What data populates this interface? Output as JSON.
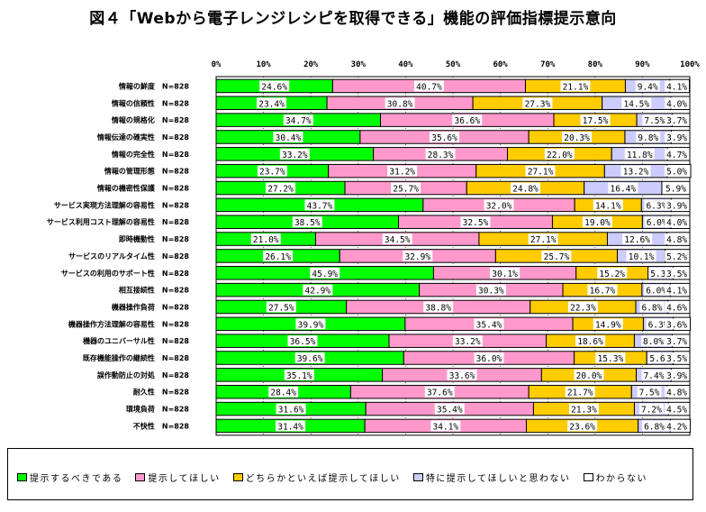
{
  "chart_data": {
    "type": "bar",
    "orientation": "horizontal",
    "stacked": true,
    "title": "図４「Webから電子レンジレシピを取得できる」機能の評価指標提示意向",
    "xlim": [
      0,
      100
    ],
    "x_ticks": [
      "0%",
      "10%",
      "20%",
      "30%",
      "40%",
      "50%",
      "60%",
      "70%",
      "80%",
      "90%",
      "100%"
    ],
    "grid": true,
    "legend_position": "bottom",
    "categories": [
      "情報の鮮度　N=828",
      "情報の信頼性　N=828",
      "情報の規格化　N=828",
      "情報伝達の確実性　N=828",
      "情報の完全性　N=828",
      "情報の管理形態　N=828",
      "情報の機密性保護　N=828",
      "サービス実現方法理解の容易性　N=828",
      "サービス利用コスト理解の容易性　N=828",
      "即時機動性　N=828",
      "サービスのリアルタイム性　N=828",
      "サービスの利用のサポート性　N=828",
      "相互接続性　N=828",
      "機器操作負荷　N=828",
      "機器操作方法理解の容易性　N=828",
      "機器のユニバーサル性　N=828",
      "既存機能操作の継続性　N=828",
      "誤作動防止の対処　N=828",
      "耐久性　N=828",
      "環境負荷　N=828",
      "不快性　N=828"
    ],
    "series": [
      {
        "name": "提示するべきである",
        "color": "#00ff00",
        "values": [
          24.6,
          23.4,
          34.7,
          30.4,
          33.2,
          23.7,
          27.2,
          43.7,
          38.5,
          21.0,
          26.1,
          45.9,
          42.9,
          27.5,
          39.9,
          36.5,
          39.6,
          35.1,
          28.4,
          31.6,
          31.4
        ]
      },
      {
        "name": "提示してほしい",
        "color": "#ff99cc",
        "values": [
          40.7,
          30.8,
          36.6,
          35.6,
          28.3,
          31.2,
          25.7,
          32.0,
          32.5,
          34.5,
          32.9,
          30.1,
          30.3,
          38.8,
          35.4,
          33.2,
          36.0,
          33.6,
          37.6,
          35.4,
          34.1
        ]
      },
      {
        "name": "どちらかといえば提示してほしい",
        "color": "#ffcc00",
        "values": [
          21.1,
          27.3,
          17.5,
          20.3,
          22.0,
          27.1,
          24.8,
          14.1,
          19.0,
          27.1,
          25.7,
          15.2,
          16.7,
          22.3,
          14.9,
          18.6,
          15.3,
          20.0,
          21.7,
          21.3,
          23.6
        ]
      },
      {
        "name": "特に提示してほしいと思わない",
        "color": "#ccccff",
        "values": [
          9.4,
          14.5,
          7.5,
          9.8,
          11.8,
          13.2,
          16.4,
          6.3,
          6.0,
          12.6,
          10.1,
          5.3,
          6.0,
          6.8,
          6.3,
          8.0,
          5.6,
          7.4,
          7.5,
          7.2,
          6.8
        ]
      },
      {
        "name": "わからない",
        "color": "#ffffff",
        "values": [
          4.1,
          4.0,
          3.7,
          3.9,
          4.7,
          5.0,
          5.9,
          3.9,
          4.0,
          4.8,
          5.2,
          3.5,
          4.1,
          4.6,
          3.6,
          3.7,
          3.5,
          3.9,
          4.8,
          4.5,
          4.2
        ]
      }
    ],
    "data_labels": [
      [
        "24.6%",
        "40.7%",
        "21.1%",
        "9.4%",
        "4.1%"
      ],
      [
        "23.4%",
        "30.8%",
        "27.3%",
        "14.5%",
        "4.0%"
      ],
      [
        "34.7%",
        "36.6%",
        "17.5%",
        "7.5%",
        "3.7%"
      ],
      [
        "30.4%",
        "35.6%",
        "20.3%",
        "9.8%",
        "3.9%"
      ],
      [
        "33.2%",
        "28.3%",
        "22.0%",
        "11.8%",
        "4.7%"
      ],
      [
        "23.7%",
        "31.2%",
        "27.1%",
        "13.2%",
        "5.0%"
      ],
      [
        "27.2%",
        "25.7%",
        "24.8%",
        "16.4%",
        "5.9%"
      ],
      [
        "43.7%",
        "32.0%",
        "14.1%",
        "6.3%",
        "3.9%"
      ],
      [
        "38.5%",
        "32.5%",
        "19.0%",
        "6.0%",
        "4.0%"
      ],
      [
        "21.0%",
        "34.5%",
        "27.1%",
        "12.6%",
        "4.8%"
      ],
      [
        "26.1%",
        "32.9%",
        "25.7%",
        "10.1%",
        "5.2%"
      ],
      [
        "45.9%",
        "30.1%",
        "15.2%",
        "5.3%",
        "3.5%"
      ],
      [
        "42.9%",
        "30.3%",
        "16.7%",
        "6.0%",
        "4.1%"
      ],
      [
        "27.5%",
        "38.8%",
        "22.3%",
        "6.8%",
        "4.6%"
      ],
      [
        "39.9%",
        "35.4%",
        "14.9%",
        "6.3%",
        "3.6%"
      ],
      [
        "36.5%",
        "33.2%",
        "18.6%",
        "8.0%",
        "3.7%"
      ],
      [
        "39.6%",
        "36.0%",
        "15.3%",
        "5.6%",
        "3.5%"
      ],
      [
        "35.1%",
        "33.6%",
        "20.0%",
        "7.4%",
        "3.9%"
      ],
      [
        "28.4%",
        "37.6%",
        "21.7%",
        "7.5%",
        "4.8%"
      ],
      [
        "31.6%",
        "35.4%",
        "21.3%",
        "7.2%",
        "4.5%"
      ],
      [
        "31.4%",
        "34.1%",
        "23.6%",
        "6.8%",
        "4.2%"
      ]
    ]
  }
}
